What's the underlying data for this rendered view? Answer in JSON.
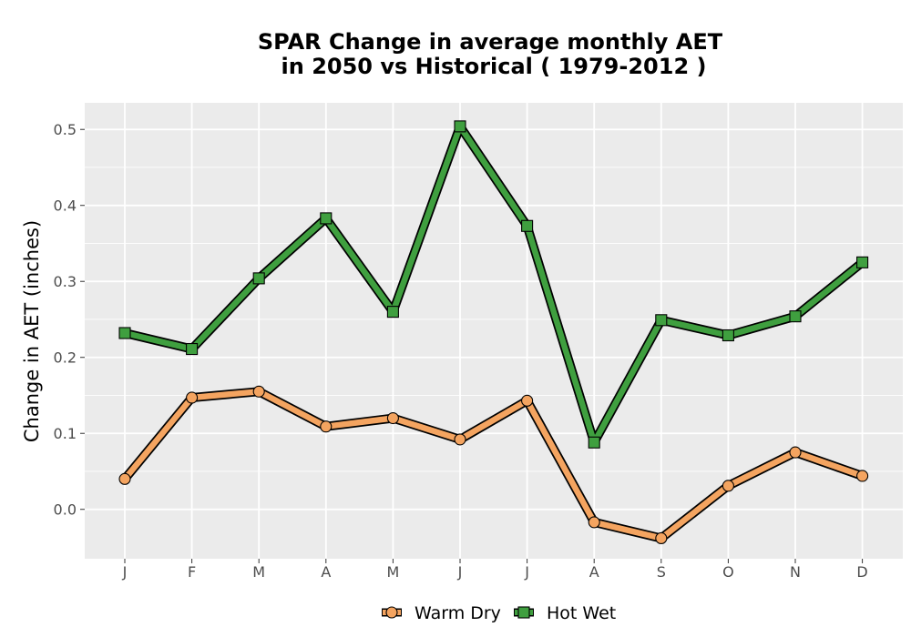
{
  "chart_data": {
    "type": "line",
    "title_line1": "SPAR  Change in average monthly AET",
    "title_line2": "in 2050 vs Historical ( 1979-2012 )",
    "xlabel": "",
    "ylabel": "Change in AET (inches)",
    "categories": [
      "J",
      "F",
      "M",
      "A",
      "M",
      "J",
      "J",
      "A",
      "S",
      "O",
      "N",
      "D"
    ],
    "ylim": [
      -0.065,
      0.535
    ],
    "yticks": [
      0.0,
      0.1,
      0.2,
      0.3,
      0.4,
      0.5
    ],
    "ytick_labels": [
      "0.0",
      "0.1",
      "0.2",
      "0.3",
      "0.4",
      "0.5"
    ],
    "grid": true,
    "legend_position": "bottom",
    "series": [
      {
        "name": "Warm Dry",
        "marker": "circle",
        "color": "#f4a460",
        "values": [
          0.04,
          0.147,
          0.155,
          0.109,
          0.12,
          0.092,
          0.143,
          -0.017,
          -0.038,
          0.031,
          0.075,
          0.044
        ]
      },
      {
        "name": "Hot Wet",
        "marker": "square",
        "color": "#3f9f3f",
        "values": [
          0.232,
          0.211,
          0.304,
          0.383,
          0.26,
          0.504,
          0.373,
          0.088,
          0.249,
          0.229,
          0.254,
          0.325
        ]
      }
    ],
    "colors": {
      "panel_background": "#ebebeb",
      "grid": "#ffffff",
      "outline": "#000000"
    }
  }
}
